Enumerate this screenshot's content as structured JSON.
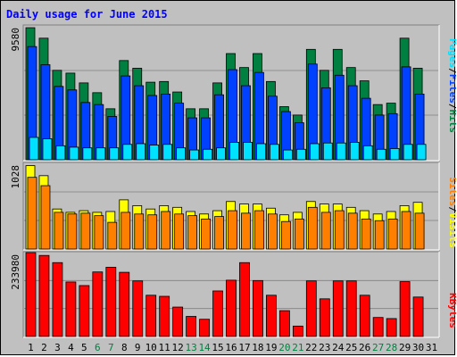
{
  "title": "Daily usage for June 2015",
  "chart_data": [
    {
      "type": "bar",
      "panel": "hits-files-pages",
      "ymax_label": "9580",
      "ylim": [
        0,
        9580
      ],
      "categories": [
        "1",
        "2",
        "3",
        "4",
        "5",
        "6",
        "7",
        "8",
        "9",
        "10",
        "11",
        "12",
        "13",
        "14",
        "15",
        "16",
        "17",
        "18",
        "19",
        "20",
        "21",
        "22",
        "23",
        "24",
        "25",
        "26",
        "27",
        "28",
        "29",
        "30",
        "31"
      ],
      "series": [
        {
          "name": "Hits",
          "color": "#008040",
          "values": [
            9450,
            8700,
            6400,
            6200,
            5500,
            4800,
            3650,
            7100,
            6550,
            5550,
            5600,
            4850,
            3650,
            3650,
            5500,
            7600,
            6600,
            7600,
            5600,
            3800,
            3200,
            7900,
            6400,
            7900,
            6600,
            5650,
            3950,
            4050,
            8700,
            6550,
            0
          ]
        },
        {
          "name": "Files",
          "color": "#0040ff",
          "values": [
            8100,
            6800,
            5250,
            5000,
            4100,
            3950,
            3100,
            6000,
            5300,
            4600,
            4700,
            4050,
            3000,
            3000,
            4650,
            6450,
            5300,
            6250,
            4550,
            3450,
            2650,
            6850,
            5150,
            6050,
            5300,
            4400,
            3200,
            3300,
            6650,
            4700,
            0
          ]
        },
        {
          "name": "Pages",
          "color": "#00e0ff",
          "values": [
            1600,
            1500,
            1000,
            900,
            850,
            850,
            850,
            1100,
            1150,
            1050,
            1100,
            850,
            700,
            750,
            850,
            1250,
            1250,
            1150,
            1100,
            700,
            750,
            1150,
            1200,
            1200,
            1250,
            1000,
            750,
            800,
            1100,
            1100,
            0
          ]
        }
      ]
    },
    {
      "type": "bar",
      "panel": "visits-sites",
      "ymax_label": "1028",
      "ylim": [
        0,
        1028
      ],
      "categories": [
        "1",
        "2",
        "3",
        "4",
        "5",
        "6",
        "7",
        "8",
        "9",
        "10",
        "11",
        "12",
        "13",
        "14",
        "15",
        "16",
        "17",
        "18",
        "19",
        "20",
        "21",
        "22",
        "23",
        "24",
        "25",
        "26",
        "27",
        "28",
        "29",
        "30",
        "31"
      ],
      "series": [
        {
          "name": "Visits",
          "color": "#ffff00",
          "values": [
            1000,
            880,
            480,
            440,
            460,
            440,
            450,
            590,
            520,
            480,
            520,
            500,
            450,
            420,
            460,
            570,
            540,
            540,
            490,
            410,
            440,
            570,
            540,
            540,
            500,
            460,
            420,
            450,
            520,
            560,
            0
          ]
        },
        {
          "name": "Sites",
          "color": "#ff8000",
          "values": [
            860,
            760,
            440,
            420,
            430,
            400,
            320,
            440,
            420,
            410,
            450,
            420,
            400,
            360,
            390,
            460,
            430,
            460,
            420,
            330,
            360,
            500,
            440,
            460,
            430,
            360,
            340,
            360,
            450,
            430,
            0
          ]
        }
      ]
    },
    {
      "type": "bar",
      "panel": "kbytes",
      "ymax_label": "233980",
      "ylim": [
        0,
        233980
      ],
      "categories": [
        "1",
        "2",
        "3",
        "4",
        "5",
        "6",
        "7",
        "8",
        "9",
        "10",
        "11",
        "12",
        "13",
        "14",
        "15",
        "16",
        "17",
        "18",
        "19",
        "20",
        "21",
        "22",
        "23",
        "24",
        "25",
        "26",
        "27",
        "28",
        "29",
        "30",
        "31"
      ],
      "series": [
        {
          "name": "KBytes",
          "color": "#ff0000",
          "values": [
            233980,
            226000,
            206000,
            152000,
            142000,
            180000,
            193000,
            179000,
            155000,
            115000,
            112000,
            82000,
            56000,
            48000,
            127000,
            157000,
            206000,
            156000,
            115000,
            72000,
            29000,
            155000,
            105000,
            155000,
            155000,
            115000,
            53000,
            50000,
            153000,
            110000,
            0
          ]
        }
      ]
    }
  ],
  "legend": {
    "hits": "Hits",
    "files": "Files",
    "pages": "Pages",
    "visits": "Visits",
    "sites": "Sites",
    "kbytes": "KBytes",
    "sep": "/"
  },
  "weekend_days": [
    "6",
    "7",
    "13",
    "14",
    "20",
    "21",
    "27",
    "28"
  ],
  "colors": {
    "background": "#c0c0c0",
    "title": "#0000ff",
    "weekend_label": "#008040",
    "weekday_label": "#000000",
    "hits": "#008040",
    "files": "#0040ff",
    "pages": "#00e0ff",
    "visits": "#ffff00",
    "sites": "#ff8000",
    "kbytes": "#ff0000"
  }
}
